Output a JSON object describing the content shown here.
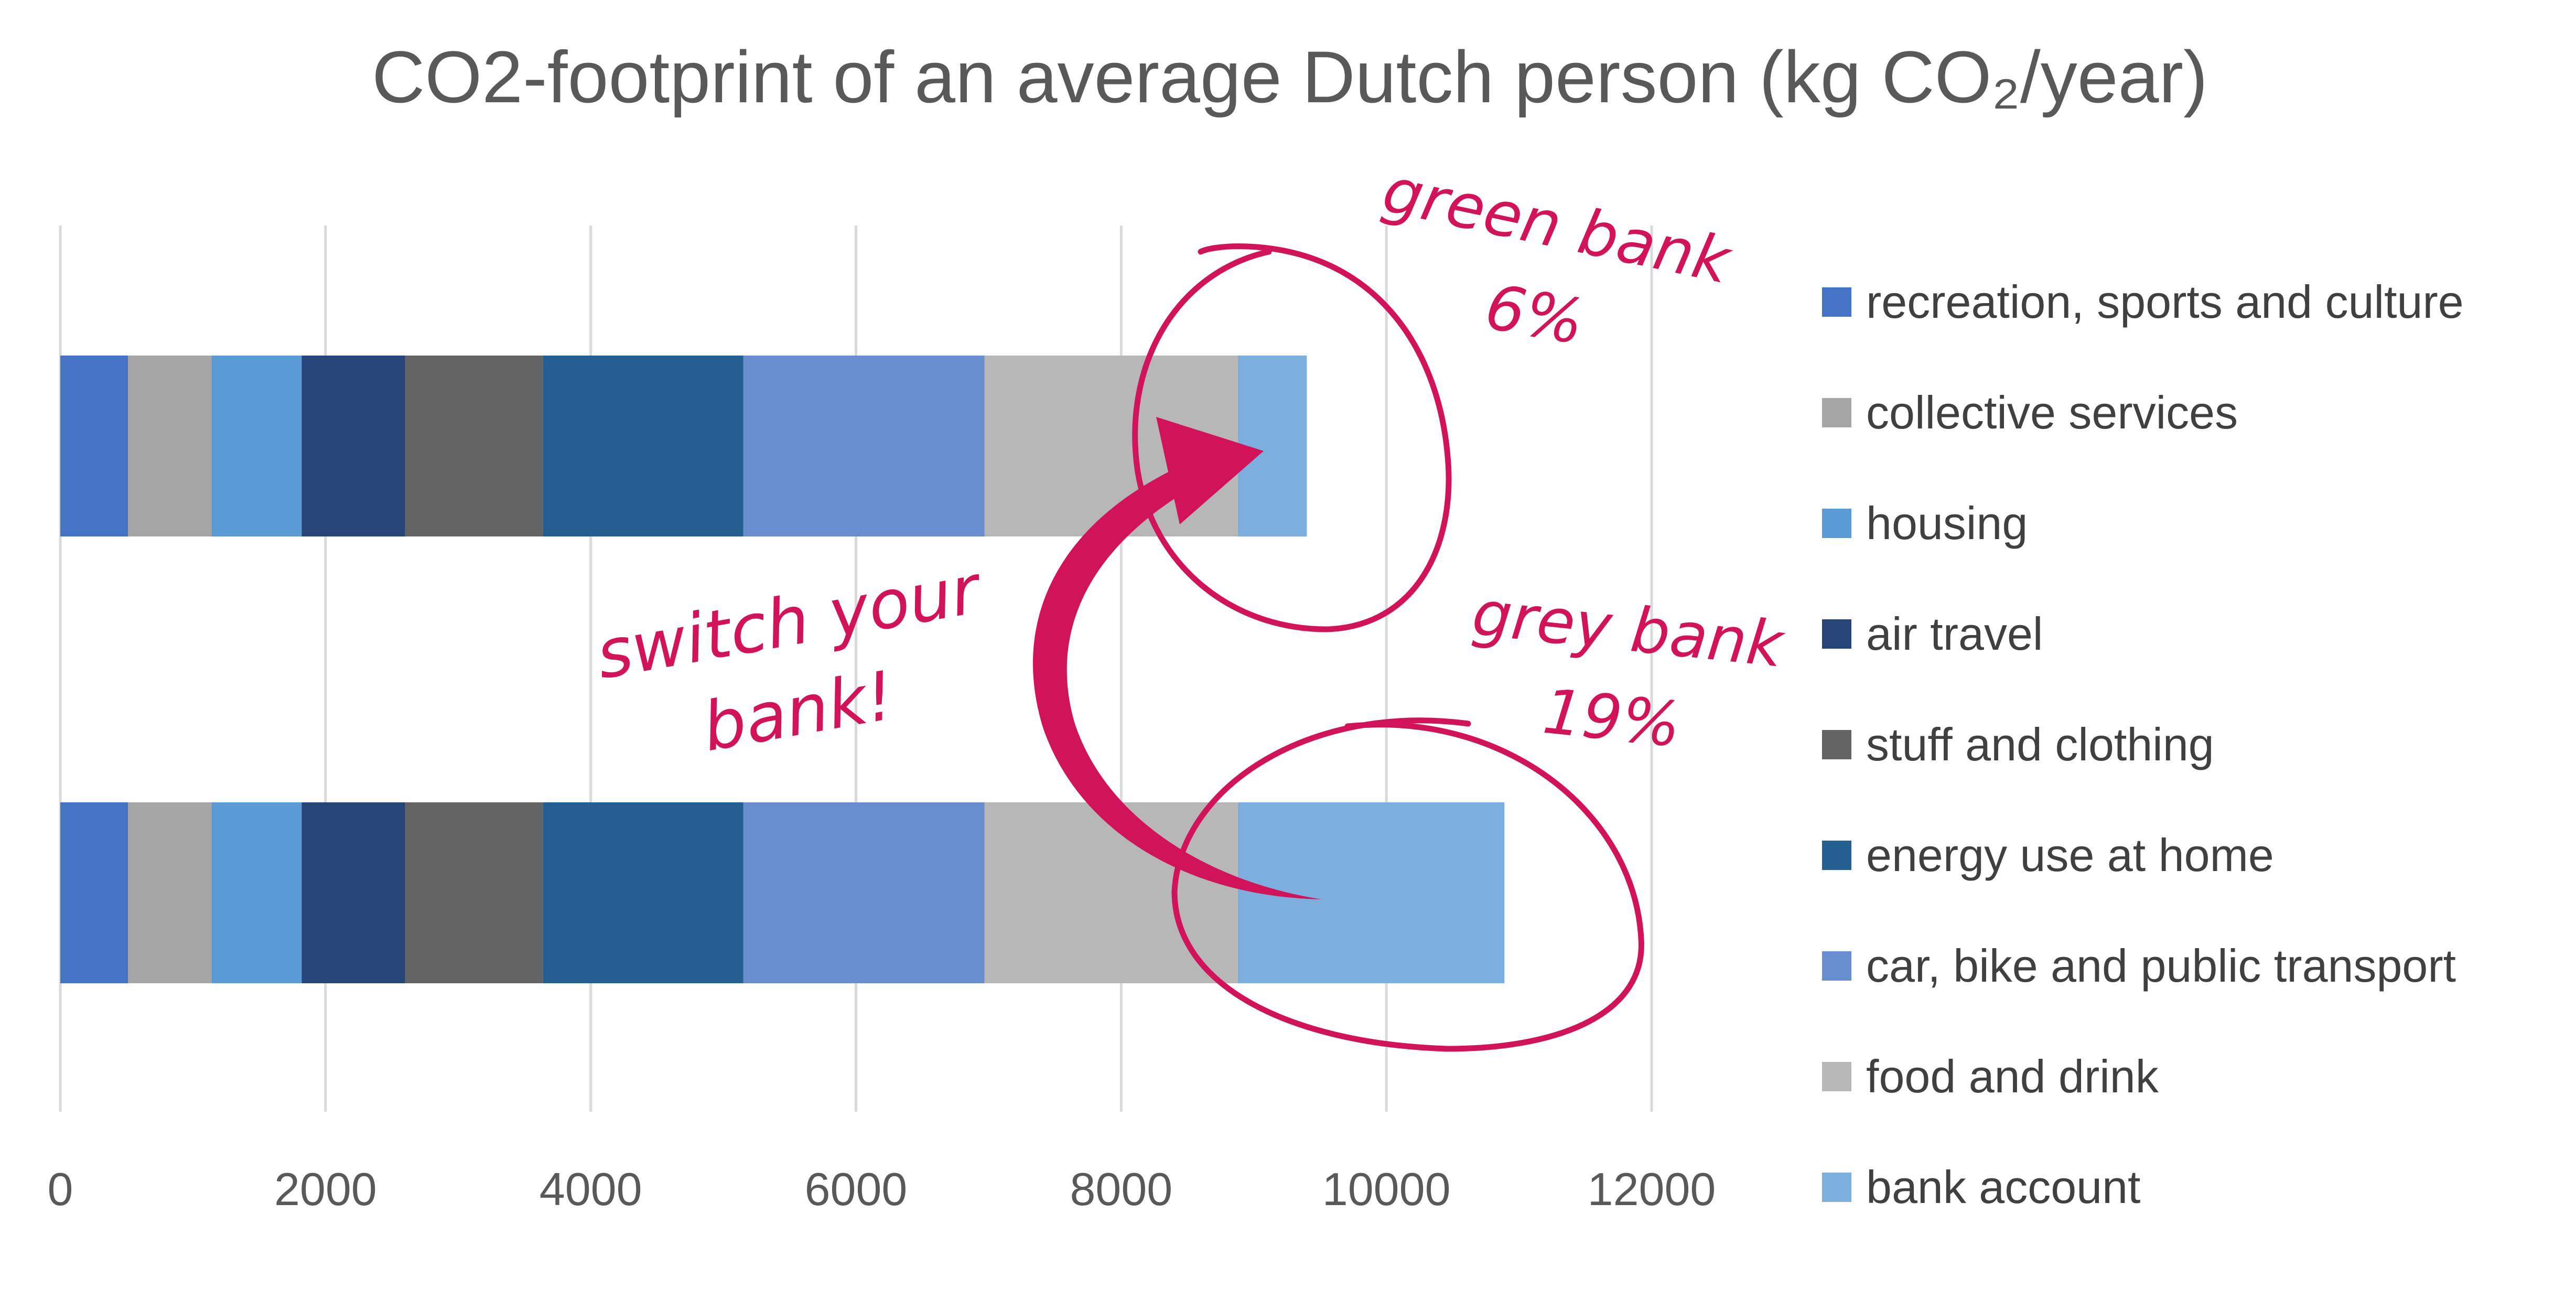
{
  "chart_data": {
    "type": "bar",
    "orientation": "horizontal",
    "stacked": true,
    "title": "CO2-footprint of an average Dutch person (kg CO₂/year)",
    "xlabel": "",
    "ylabel": "",
    "xlim": [
      0,
      12000
    ],
    "xticks": [
      "0",
      "2000",
      "4000",
      "6000",
      "8000",
      "10000",
      "12000"
    ],
    "grid": "vertical",
    "legend_position": "right",
    "categories": [
      "grey bank",
      "green bank"
    ],
    "series": [
      {
        "name": "recreation, sports and culture",
        "color": "#4472C4",
        "values": [
          510,
          510
        ]
      },
      {
        "name": "collective services",
        "color": "#A5A5A5",
        "values": [
          630,
          630
        ]
      },
      {
        "name": "housing",
        "color": "#5B9BD5",
        "values": [
          680,
          680
        ]
      },
      {
        "name": "air travel",
        "color": "#264478",
        "values": [
          780,
          780
        ]
      },
      {
        "name": "stuff and clothing",
        "color": "#636363",
        "values": [
          1040,
          1040
        ]
      },
      {
        "name": "energy use at home",
        "color": "#255E91",
        "values": [
          1510,
          1510
        ]
      },
      {
        "name": "car, bike and public transport",
        "color": "#698ED0",
        "values": [
          1820,
          1820
        ]
      },
      {
        "name": "food and drink",
        "color": "#B7B7B7",
        "values": [
          1910,
          1910
        ]
      },
      {
        "name": "bank account",
        "color": "#7CAFDD",
        "values": [
          2010,
          520
        ]
      }
    ],
    "annotations": {
      "color": "#D1145A",
      "green_bank_line1": "green bank",
      "green_bank_line2": "6%",
      "grey_bank_line1": "grey bank",
      "grey_bank_line2": "19%",
      "switch_line1": "switch your",
      "switch_line2": "bank!"
    }
  }
}
